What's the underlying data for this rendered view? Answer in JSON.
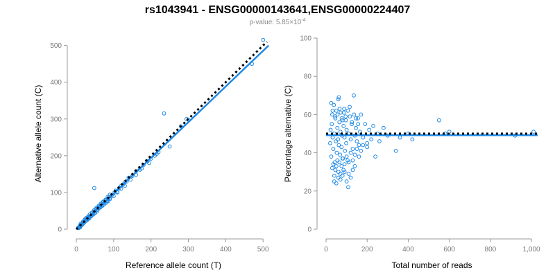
{
  "title": "rs1043941 - ENSG00000143641,ENSG00000224407",
  "subtitle": {
    "prefix": "p-value: 5.85×10",
    "exponent": "-4"
  },
  "colors": {
    "points": "#1e88e5",
    "fit_line": "#1e88e5",
    "reference_line": "#000000"
  },
  "chart_data": [
    {
      "type": "scatter",
      "xlabel": "Reference allele count (T)",
      "ylabel": "Alternative allele count (C)",
      "xlim": [
        0,
        520
      ],
      "ylim": [
        0,
        520
      ],
      "x_ticks": [
        0,
        100,
        200,
        300,
        400,
        500
      ],
      "y_ticks": [
        0,
        100,
        200,
        300,
        400,
        500
      ],
      "x_tick_labels": [
        "0",
        "100",
        "200",
        "300",
        "400",
        "500"
      ],
      "y_tick_labels": [
        "0",
        "100",
        "200",
        "300",
        "400",
        "500"
      ],
      "reference_line": {
        "x": [
          0,
          510
        ],
        "y": [
          0,
          510
        ],
        "style": "dotted"
      },
      "fit_line": {
        "x": [
          0,
          515
        ],
        "y": [
          0,
          500
        ],
        "style": "solid"
      },
      "points": {
        "x": [
          5,
          8,
          10,
          12,
          14,
          16,
          18,
          20,
          22,
          24,
          26,
          28,
          30,
          32,
          34,
          36,
          38,
          40,
          42,
          44,
          46,
          48,
          50,
          52,
          55,
          58,
          60,
          62,
          65,
          68,
          70,
          72,
          75,
          78,
          80,
          82,
          85,
          88,
          90,
          95,
          100,
          105,
          110,
          115,
          120,
          125,
          130,
          135,
          140,
          150,
          160,
          170,
          180,
          190,
          200,
          210,
          220,
          235,
          250,
          280,
          295,
          300,
          470,
          500,
          10,
          15,
          20,
          25,
          30,
          35,
          40,
          45,
          50,
          55,
          60,
          65,
          70,
          75,
          80,
          85,
          90,
          100,
          110,
          120,
          130,
          145,
          160,
          175,
          195,
          215,
          12,
          18,
          24,
          30,
          36,
          42,
          48,
          54,
          60,
          66,
          72,
          78,
          84,
          90,
          48,
          6,
          9,
          13,
          17,
          21,
          25,
          29,
          33,
          37,
          41
        ],
        "y": [
          4,
          7,
          11,
          9,
          15,
          13,
          20,
          18,
          25,
          22,
          30,
          27,
          28,
          35,
          32,
          40,
          36,
          38,
          45,
          42,
          48,
          44,
          50,
          55,
          52,
          60,
          58,
          63,
          62,
          70,
          66,
          75,
          72,
          78,
          80,
          76,
          83,
          88,
          85,
          92,
          98,
          105,
          100,
          112,
          118,
          122,
          128,
          130,
          140,
          145,
          158,
          162,
          175,
          185,
          192,
          200,
          210,
          315,
          225,
          280,
          300,
          298,
          450,
          515,
          5,
          12,
          18,
          22,
          26,
          30,
          36,
          40,
          44,
          48,
          56,
          60,
          64,
          68,
          72,
          76,
          82,
          90,
          102,
          110,
          118,
          135,
          148,
          165,
          180,
          205,
          15,
          20,
          28,
          32,
          40,
          45,
          52,
          58,
          64,
          70,
          74,
          80,
          88,
          94,
          112,
          3,
          6,
          10,
          14,
          18,
          22,
          26,
          30,
          34,
          38
        ]
      }
    },
    {
      "type": "scatter",
      "xlabel": "Total number of reads",
      "ylabel": "Percentage alternative (C)",
      "xlim": [
        0,
        1030
      ],
      "ylim": [
        0,
        100
      ],
      "x_ticks": [
        0,
        200,
        400,
        600,
        800,
        1000
      ],
      "y_ticks": [
        0,
        20,
        40,
        60,
        80,
        100
      ],
      "x_tick_labels": [
        "0",
        "200",
        "400",
        "600",
        "800",
        "1,000"
      ],
      "y_tick_labels": [
        "0",
        "20",
        "40",
        "60",
        "80",
        "100"
      ],
      "reference_line": {
        "x": [
          0,
          1030
        ],
        "y": [
          50,
          50
        ],
        "style": "dotted"
      },
      "fit_line": {
        "x": [
          0,
          1030
        ],
        "y": [
          49.2,
          49.2
        ],
        "style": "solid"
      },
      "points": {
        "x": [
          20,
          22,
          25,
          28,
          30,
          32,
          35,
          38,
          40,
          42,
          45,
          48,
          50,
          52,
          55,
          58,
          60,
          62,
          65,
          68,
          70,
          72,
          75,
          78,
          80,
          82,
          85,
          88,
          90,
          92,
          95,
          98,
          100,
          105,
          110,
          115,
          120,
          125,
          130,
          135,
          140,
          145,
          150,
          155,
          160,
          165,
          170,
          180,
          190,
          200,
          210,
          220,
          230,
          240,
          250,
          260,
          280,
          300,
          340,
          360,
          400,
          420,
          550,
          580,
          600,
          920,
          1010,
          30,
          35,
          40,
          45,
          50,
          55,
          60,
          65,
          70,
          75,
          80,
          85,
          90,
          100,
          110,
          120,
          130,
          140,
          150,
          160,
          170,
          180,
          200,
          25,
          32,
          44,
          56,
          66,
          76,
          86,
          96,
          106,
          116,
          126,
          136,
          146,
          156,
          40,
          50,
          60,
          70,
          80,
          90,
          100,
          110,
          120,
          130,
          140,
          108,
          62
        ],
        "y": [
          45,
          52,
          38,
          55,
          60,
          48,
          42,
          65,
          50,
          35,
          58,
          46,
          62,
          40,
          53,
          47,
          68,
          44,
          56,
          39,
          51,
          61,
          43,
          49,
          57,
          37,
          54,
          63,
          48,
          41,
          59,
          45,
          52,
          36,
          50,
          64,
          47,
          55,
          42,
          70,
          49,
          53,
          46,
          58,
          44,
          51,
          60,
          48,
          55,
          43,
          52,
          47,
          54,
          38,
          50,
          46,
          53,
          49,
          41,
          48,
          50,
          47,
          57,
          50,
          51,
          49,
          51,
          32,
          34,
          28,
          31,
          33,
          36,
          30,
          35,
          29,
          33,
          37,
          31,
          34,
          38,
          35,
          40,
          36,
          39,
          42,
          38,
          41,
          44,
          45,
          66,
          62,
          59,
          60,
          63,
          58,
          61,
          57,
          62,
          59,
          56,
          60,
          58,
          55,
          25,
          24,
          27,
          26,
          28,
          30,
          25,
          29,
          27,
          31,
          33,
          22,
          69
        ]
      }
    }
  ]
}
